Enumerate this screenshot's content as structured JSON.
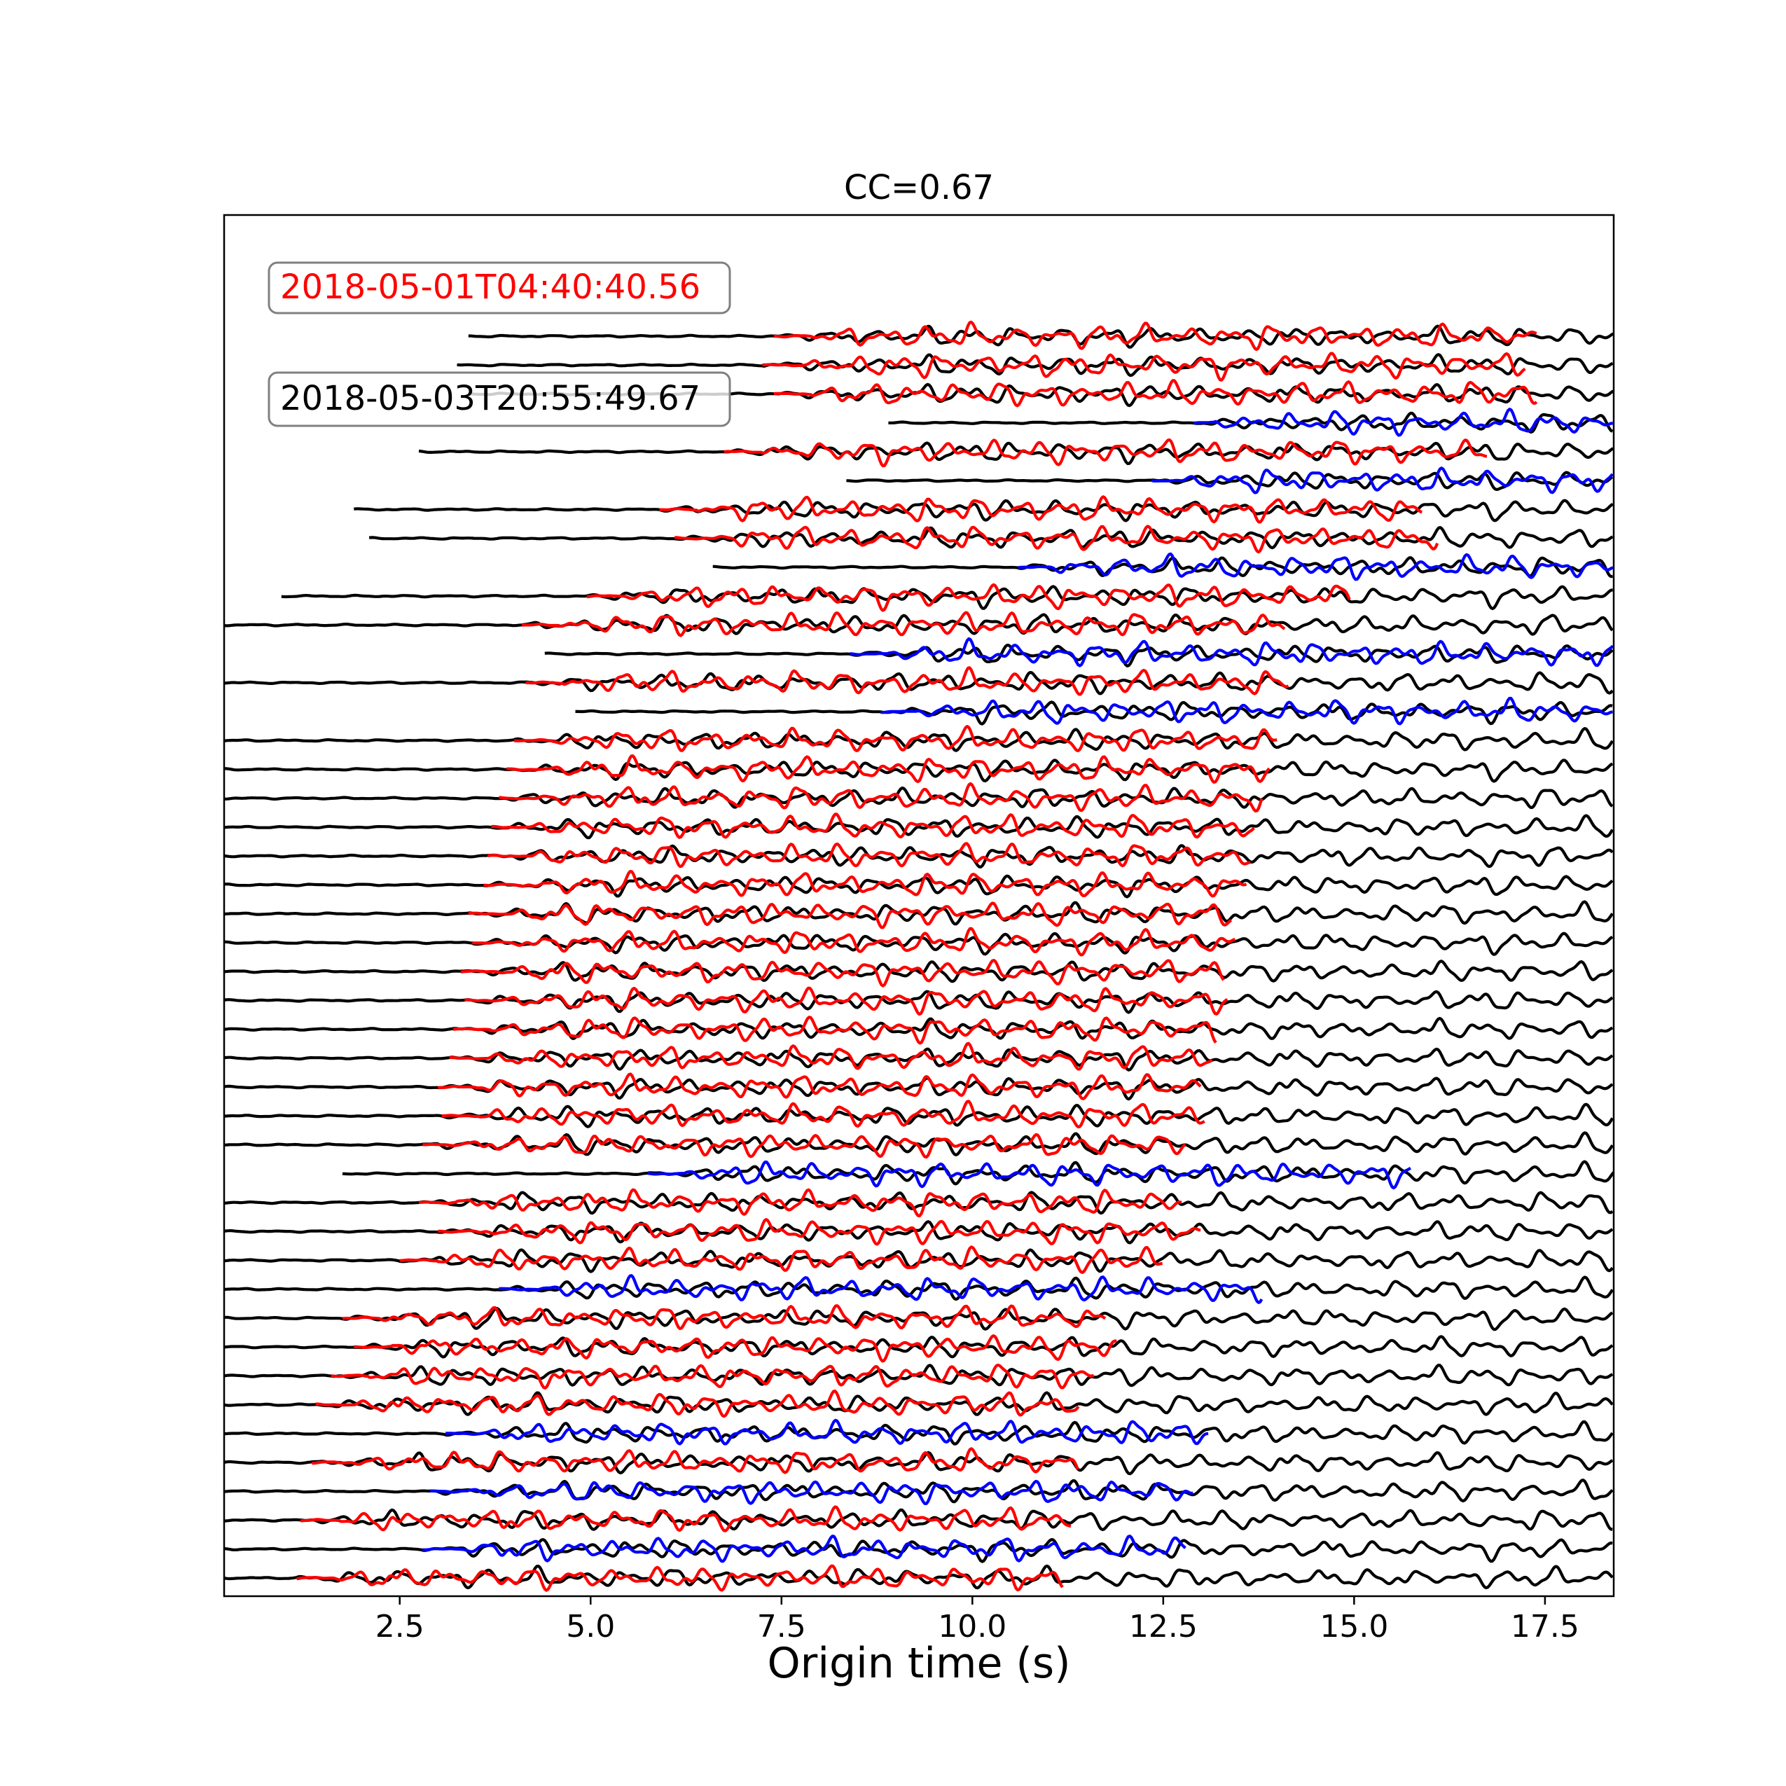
{
  "chart_data": {
    "type": "line",
    "title": "CC=0.67",
    "xlabel": "Origin time (s)",
    "ylabel": "",
    "xlim": [
      0.2,
      18.4
    ],
    "xticks": [
      2.5,
      5.0,
      7.5,
      10.0,
      12.5,
      15.0,
      17.5
    ],
    "xtick_labels": [
      "2.5",
      "5.0",
      "7.5",
      "10.0",
      "12.5",
      "15.0",
      "17.5"
    ],
    "grid": false,
    "annotations": [
      {
        "text": "2018-05-01T04:40:40.56",
        "color": "#ff0000"
      },
      {
        "text": "2018-05-03T20:55:49.67",
        "color": "#000000"
      }
    ],
    "colors": {
      "reference": "#000000",
      "template": "#ff0000",
      "alternate": "#0000ff"
    },
    "series": [
      {
        "start": 3.4,
        "end": 18.4,
        "overlay_start": 7.4,
        "overlay_end": 17.4,
        "overlay": "red"
      },
      {
        "start": 3.25,
        "end": 18.4,
        "overlay_start": 7.25,
        "overlay_end": 17.25,
        "overlay": "red"
      },
      {
        "start": 3.4,
        "end": 18.4,
        "overlay_start": 7.4,
        "overlay_end": 17.4,
        "overlay": "red"
      },
      {
        "start": 8.9,
        "end": 18.4,
        "overlay_start": 12.9,
        "overlay_end": 18.4,
        "overlay": "blue"
      },
      {
        "start": 2.75,
        "end": 18.4,
        "overlay_start": 6.75,
        "overlay_end": 16.75,
        "overlay": "red"
      },
      {
        "start": 8.35,
        "end": 18.4,
        "overlay_start": 12.35,
        "overlay_end": 18.4,
        "overlay": "blue"
      },
      {
        "start": 1.9,
        "end": 18.4,
        "overlay_start": 5.9,
        "overlay_end": 15.9,
        "overlay": "red"
      },
      {
        "start": 2.1,
        "end": 18.4,
        "overlay_start": 6.1,
        "overlay_end": 16.1,
        "overlay": "red"
      },
      {
        "start": 6.6,
        "end": 18.4,
        "overlay_start": 10.6,
        "overlay_end": 18.4,
        "overlay": "blue"
      },
      {
        "start": 0.95,
        "end": 18.4,
        "overlay_start": 4.95,
        "overlay_end": 14.95,
        "overlay": "red"
      },
      {
        "start": 0.2,
        "end": 18.4,
        "overlay_start": 4.1,
        "overlay_end": 14.1,
        "overlay": "red"
      },
      {
        "start": 4.4,
        "end": 18.4,
        "overlay_start": 8.4,
        "overlay_end": 18.4,
        "overlay": "blue"
      },
      {
        "start": 0.2,
        "end": 18.4,
        "overlay_start": 4.15,
        "overlay_end": 14.15,
        "overlay": "red"
      },
      {
        "start": 4.8,
        "end": 18.4,
        "overlay_start": 8.8,
        "overlay_end": 18.4,
        "overlay": "blue"
      },
      {
        "start": 0.2,
        "end": 18.4,
        "overlay_start": 4.0,
        "overlay_end": 14.0,
        "overlay": "red"
      },
      {
        "start": 0.2,
        "end": 18.4,
        "overlay_start": 3.9,
        "overlay_end": 13.9,
        "overlay": "red"
      },
      {
        "start": 0.2,
        "end": 18.4,
        "overlay_start": 3.8,
        "overlay_end": 13.8,
        "overlay": "red"
      },
      {
        "start": 0.2,
        "end": 18.4,
        "overlay_start": 3.7,
        "overlay_end": 13.7,
        "overlay": "red"
      },
      {
        "start": 0.2,
        "end": 18.4,
        "overlay_start": 3.65,
        "overlay_end": 13.65,
        "overlay": "red"
      },
      {
        "start": 0.2,
        "end": 18.4,
        "overlay_start": 3.6,
        "overlay_end": 13.6,
        "overlay": "red"
      },
      {
        "start": 0.2,
        "end": 18.4,
        "overlay_start": 3.4,
        "overlay_end": 13.4,
        "overlay": "red"
      },
      {
        "start": 0.2,
        "end": 18.4,
        "overlay_start": 3.45,
        "overlay_end": 13.45,
        "overlay": "red"
      },
      {
        "start": 0.2,
        "end": 18.4,
        "overlay_start": 3.3,
        "overlay_end": 13.3,
        "overlay": "red"
      },
      {
        "start": 0.2,
        "end": 18.4,
        "overlay_start": 3.35,
        "overlay_end": 13.35,
        "overlay": "red"
      },
      {
        "start": 0.2,
        "end": 18.4,
        "overlay_start": 3.2,
        "overlay_end": 13.2,
        "overlay": "red"
      },
      {
        "start": 0.2,
        "end": 18.4,
        "overlay_start": 3.15,
        "overlay_end": 13.15,
        "overlay": "red"
      },
      {
        "start": 0.2,
        "end": 18.4,
        "overlay_start": 3.0,
        "overlay_end": 13.0,
        "overlay": "red"
      },
      {
        "start": 0.2,
        "end": 18.4,
        "overlay_start": 3.05,
        "overlay_end": 13.05,
        "overlay": "red"
      },
      {
        "start": 0.2,
        "end": 18.4,
        "overlay_start": 2.8,
        "overlay_end": 12.8,
        "overlay": "red"
      },
      {
        "start": 1.75,
        "end": 18.4,
        "overlay_start": 5.75,
        "overlay_end": 15.75,
        "overlay": "blue"
      },
      {
        "start": 0.2,
        "end": 18.4,
        "overlay_start": 2.75,
        "overlay_end": 12.75,
        "overlay": "red"
      },
      {
        "start": 0.2,
        "end": 18.4,
        "overlay_start": 3.0,
        "overlay_end": 13.0,
        "overlay": "red"
      },
      {
        "start": 0.2,
        "end": 18.4,
        "overlay_start": 2.5,
        "overlay_end": 12.5,
        "overlay": "red"
      },
      {
        "start": 0.2,
        "end": 18.4,
        "overlay_start": 3.8,
        "overlay_end": 13.8,
        "overlay": "blue"
      },
      {
        "start": 0.2,
        "end": 18.4,
        "overlay_start": 1.75,
        "overlay_end": 11.75,
        "overlay": "red"
      },
      {
        "start": 0.2,
        "end": 18.4,
        "overlay_start": 1.9,
        "overlay_end": 11.9,
        "overlay": "red"
      },
      {
        "start": 0.2,
        "end": 18.4,
        "overlay_start": 1.6,
        "overlay_end": 11.6,
        "overlay": "red"
      },
      {
        "start": 0.2,
        "end": 18.4,
        "overlay_start": 1.4,
        "overlay_end": 11.4,
        "overlay": "red"
      },
      {
        "start": 0.2,
        "end": 18.4,
        "overlay_start": 3.1,
        "overlay_end": 13.1,
        "overlay": "blue"
      },
      {
        "start": 0.2,
        "end": 18.4,
        "overlay_start": 1.35,
        "overlay_end": 11.4,
        "overlay": "red"
      },
      {
        "start": 0.2,
        "end": 18.4,
        "overlay_start": 2.9,
        "overlay_end": 12.9,
        "overlay": "blue"
      },
      {
        "start": 0.2,
        "end": 18.4,
        "overlay_start": 1.2,
        "overlay_end": 11.3,
        "overlay": "red"
      },
      {
        "start": 0.2,
        "end": 18.4,
        "overlay_start": 2.8,
        "overlay_end": 12.8,
        "overlay": "blue"
      },
      {
        "start": 0.2,
        "end": 18.4,
        "overlay_start": 1.15,
        "overlay_end": 11.2,
        "overlay": "red"
      }
    ]
  }
}
